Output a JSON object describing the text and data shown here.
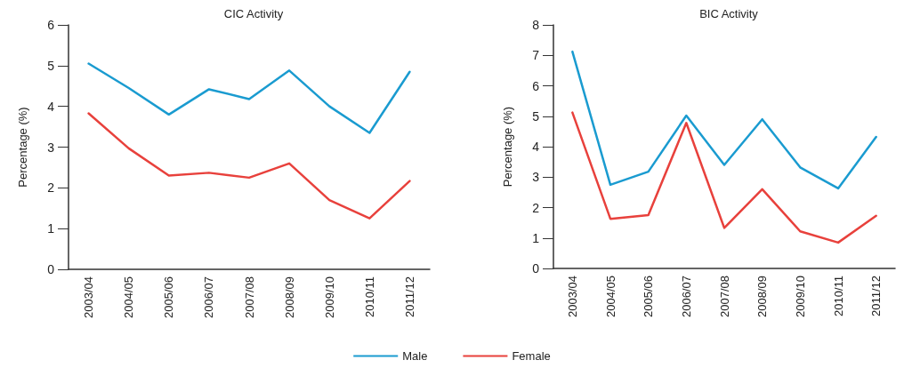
{
  "chart_data": [
    {
      "type": "line",
      "title": "CIC Activity",
      "ylabel": "Percentage (%)",
      "categories": [
        "2003/04",
        "2004/05",
        "2005/06",
        "2006/07",
        "2007/08",
        "2008/09",
        "2009/10",
        "2010/11",
        "2011/12"
      ],
      "series": [
        {
          "name": "Male",
          "color": "#1a9bd0",
          "values": [
            5.05,
            4.45,
            3.8,
            4.42,
            4.18,
            4.88,
            4.0,
            3.35,
            4.85
          ]
        },
        {
          "name": "Female",
          "color": "#e8413c",
          "values": [
            3.83,
            2.97,
            2.3,
            2.37,
            2.25,
            2.6,
            1.7,
            1.25,
            2.17
          ]
        }
      ],
      "ylim": [
        0,
        6
      ],
      "yticks": [
        0,
        1,
        2,
        3,
        4,
        5,
        6
      ],
      "grid": false,
      "marker": "none",
      "legend": "bottom"
    },
    {
      "type": "line",
      "title": "BIC Activity",
      "ylabel": "Percentage (%)",
      "categories": [
        "2003/04",
        "2004/05",
        "2005/06",
        "2006/07",
        "2007/08",
        "2008/09",
        "2009/10",
        "2010/11",
        "2011/12"
      ],
      "series": [
        {
          "color": "#1a9bd0",
          "values": [
            7.12,
            2.75,
            3.18,
            5.02,
            3.4,
            4.9,
            3.32,
            2.63,
            4.32
          ]
        },
        {
          "color": "#e8413c",
          "values": [
            5.12,
            1.63,
            1.75,
            4.78,
            1.33,
            2.6,
            1.22,
            0.85,
            1.73
          ]
        }
      ],
      "ylim": [
        0,
        8
      ],
      "yticks": [
        0,
        1,
        2,
        3,
        4,
        5,
        6,
        7,
        8
      ],
      "grid": false,
      "marker": "none"
    }
  ]
}
